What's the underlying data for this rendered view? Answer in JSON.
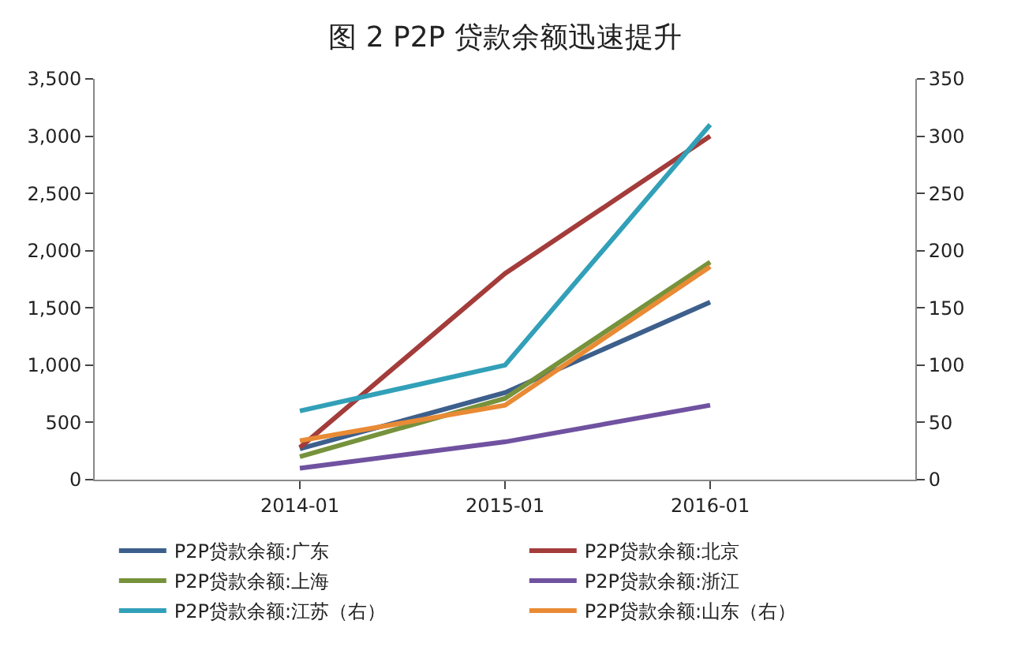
{
  "chart_data": {
    "type": "line",
    "title": "图 2 P2P 贷款余额迅速提升",
    "categories": [
      "2014-01",
      "2015-01",
      "2016-01"
    ],
    "series": [
      {
        "name": "P2P贷款余额:广东",
        "color": "#3d5f8c",
        "values": [
          270,
          760,
          1550
        ]
      },
      {
        "name": "P2P贷款余额:北京",
        "color": "#a33c3a",
        "values": [
          280,
          1800,
          3000
        ]
      },
      {
        "name": "P2P贷款余额:上海",
        "color": "#76923c",
        "values": [
          200,
          710,
          1900
        ]
      },
      {
        "name": "P2P贷款余额:浙江",
        "color": "#7052a0",
        "values": [
          100,
          330,
          650
        ]
      },
      {
        "name": "P2P贷款余额:江苏（右）",
        "color": "#31a0b8",
        "values": [
          60,
          100,
          310
        ],
        "axis": "y2"
      },
      {
        "name": "P2P贷款余额:山东（右）",
        "color": "#e98a35",
        "values": [
          34,
          65,
          186
        ],
        "axis": "y2"
      }
    ],
    "ylim": [
      0,
      3500
    ],
    "yticks": [
      0,
      {
        "value": 500,
        "label": "500"
      },
      {
        "value": 1000,
        "label": "1,000"
      },
      {
        "value": 1500,
        "label": "1,500"
      },
      {
        "value": 2000,
        "label": "2,000"
      },
      {
        "value": 2500,
        "label": "2,500"
      },
      {
        "value": 3000,
        "label": "3,000"
      },
      {
        "value": 3500,
        "label": "3,500"
      }
    ],
    "y2lim": [
      0,
      350
    ],
    "y2ticks": [
      0,
      50,
      100,
      150,
      200,
      250,
      300,
      350
    ],
    "legend": "bottom",
    "marker": "none",
    "line_style": "solid"
  }
}
